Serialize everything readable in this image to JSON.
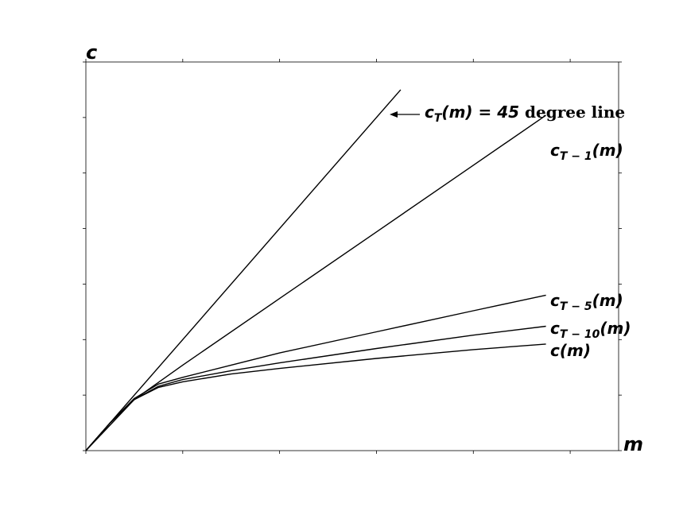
{
  "chart_data": {
    "type": "line",
    "xlabel": "m",
    "ylabel": "c",
    "xlim": [
      0,
      5.5
    ],
    "ylim": [
      0,
      3.5
    ],
    "grid": false,
    "series": [
      {
        "name": "45 degree line",
        "x": [
          0,
          3.25
        ],
        "y": [
          0,
          3.25
        ]
      },
      {
        "name": "c_{T-1}(m)",
        "x": [
          0,
          0.5,
          1.0,
          2.0,
          3.0,
          4.0,
          4.75
        ],
        "y": [
          0,
          0.46,
          0.77,
          1.37,
          1.97,
          2.57,
          3.02
        ]
      },
      {
        "name": "c_{T-5}(m)",
        "x": [
          0,
          0.25,
          0.5,
          0.75,
          1.0,
          1.5,
          2.0,
          3.0,
          4.0,
          4.75
        ],
        "y": [
          0,
          0.25,
          0.47,
          0.6,
          0.66,
          0.77,
          0.88,
          1.07,
          1.26,
          1.4
        ]
      },
      {
        "name": "c_{T-10}(m)",
        "x": [
          0,
          0.25,
          0.5,
          0.75,
          1.0,
          1.5,
          2.0,
          3.0,
          4.0,
          4.75
        ],
        "y": [
          0,
          0.25,
          0.46,
          0.58,
          0.64,
          0.72,
          0.79,
          0.92,
          1.04,
          1.12
        ]
      },
      {
        "name": "c(m)",
        "x": [
          0,
          0.25,
          0.5,
          0.75,
          1.0,
          1.5,
          2.0,
          3.0,
          4.0,
          4.75
        ],
        "y": [
          0,
          0.25,
          0.46,
          0.57,
          0.62,
          0.69,
          0.74,
          0.83,
          0.91,
          0.96
        ]
      }
    ],
    "annotations": [
      {
        "label_parts": {
          "c": "c",
          "sub": "T",
          "rest": "(m) = 45",
          "tail": " degree line"
        },
        "target_x": 3.15,
        "target_y": 3.02,
        "arrow": true
      }
    ],
    "curve_labels": [
      {
        "c": "c",
        "sub": "T − 1",
        "rest": "(m)"
      },
      {
        "c": "c",
        "sub": "T − 5",
        "rest": "(m)"
      },
      {
        "c": "c",
        "sub": "T − 10",
        "rest": "(m)"
      },
      {
        "c": "",
        "sub": "",
        "rest": "c(m)"
      }
    ]
  }
}
